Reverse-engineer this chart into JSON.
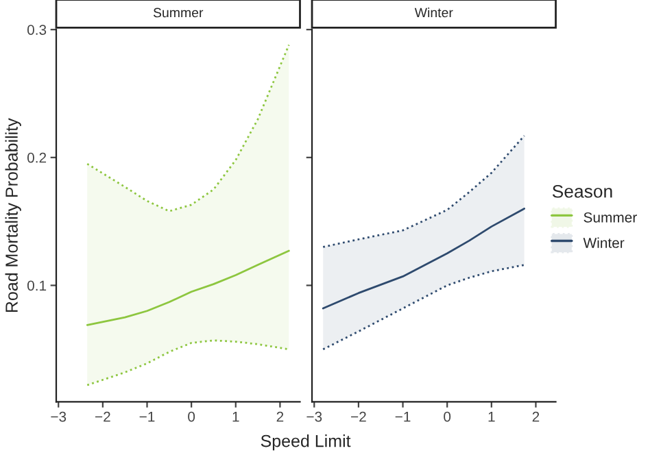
{
  "chart_data": [
    {
      "type": "line",
      "title": "Summer",
      "ylabel": "Road Mortality Probability",
      "xlabel": "Speed Limit",
      "xlim": [
        -3.05,
        2.45
      ],
      "xticks": [
        -3,
        -2,
        -1,
        0,
        1,
        2
      ],
      "ylim": [
        0.009,
        0.3
      ],
      "yticks": [
        0.1,
        0.2,
        0.3
      ],
      "grid": false,
      "legend": "right",
      "legend_title": "Season",
      "line_style": "solid",
      "series": [
        {
          "name": "Summer",
          "color": "#8dc63f",
          "x": [
            -2.35,
            -1.5,
            -1,
            -0.5,
            0,
            0.5,
            1,
            1.5,
            2.2
          ],
          "values": [
            0.069,
            0.075,
            0.08,
            0.087,
            0.095,
            0.101,
            0.108,
            0.116,
            0.127
          ],
          "lower": [
            0.022,
            0.032,
            0.039,
            0.048,
            0.055,
            0.057,
            0.056,
            0.054,
            0.05
          ],
          "upper": [
            0.195,
            0.177,
            0.166,
            0.158,
            0.163,
            0.175,
            0.198,
            0.23,
            0.288
          ]
        },
        {
          "color": "#8dc63f",
          "line_style": "dotted",
          "x": [
            -2.35,
            -1.5,
            -1,
            -0.5,
            0,
            0.5,
            1,
            1.5,
            2.2
          ],
          "values": [
            0.022,
            0.032,
            0.039,
            0.048,
            0.055,
            0.057,
            0.056,
            0.054,
            0.05
          ]
        },
        {
          "color": "#8dc63f",
          "line_style": "dotted",
          "x": [
            -2.35,
            -1.5,
            -1,
            -0.5,
            0,
            0.5,
            1,
            1.5,
            2.2
          ],
          "values": [
            0.195,
            0.177,
            0.166,
            0.158,
            0.163,
            0.175,
            0.198,
            0.23,
            0.288
          ]
        }
      ]
    },
    {
      "type": "line",
      "title": "Winter",
      "xlim": [
        -3.05,
        2.45
      ],
      "xticks": [
        -3,
        -2,
        -1,
        0,
        1,
        2
      ],
      "ylim": [
        0.009,
        0.3
      ],
      "yticks": [
        0.1,
        0.2,
        0.3
      ],
      "tick_labels": "x",
      "grid": false,
      "legend": "right",
      "line_style": "solid",
      "series": [
        {
          "name": "Winter",
          "color": "#2e4a6e",
          "x": [
            -2.8,
            -2,
            -1,
            0,
            0.5,
            1,
            1.74
          ],
          "values": [
            0.082,
            0.094,
            0.107,
            0.125,
            0.135,
            0.146,
            0.16
          ],
          "lower": [
            0.05,
            0.064,
            0.082,
            0.1,
            0.106,
            0.111,
            0.116
          ],
          "upper": [
            0.13,
            0.136,
            0.143,
            0.159,
            0.173,
            0.188,
            0.217
          ]
        },
        {
          "color": "#2e4a6e",
          "line_style": "dotted",
          "x": [
            -2.8,
            -2,
            -1,
            0,
            0.5,
            1,
            1.74
          ],
          "values": [
            0.05,
            0.064,
            0.082,
            0.1,
            0.106,
            0.111,
            0.116
          ]
        },
        {
          "color": "#2e4a6e",
          "line_style": "dotted",
          "x": [
            -2.8,
            -2,
            -1,
            0,
            0.5,
            1,
            1.74
          ],
          "values": [
            0.13,
            0.136,
            0.143,
            0.159,
            0.173,
            0.188,
            0.217
          ]
        }
      ]
    }
  ]
}
